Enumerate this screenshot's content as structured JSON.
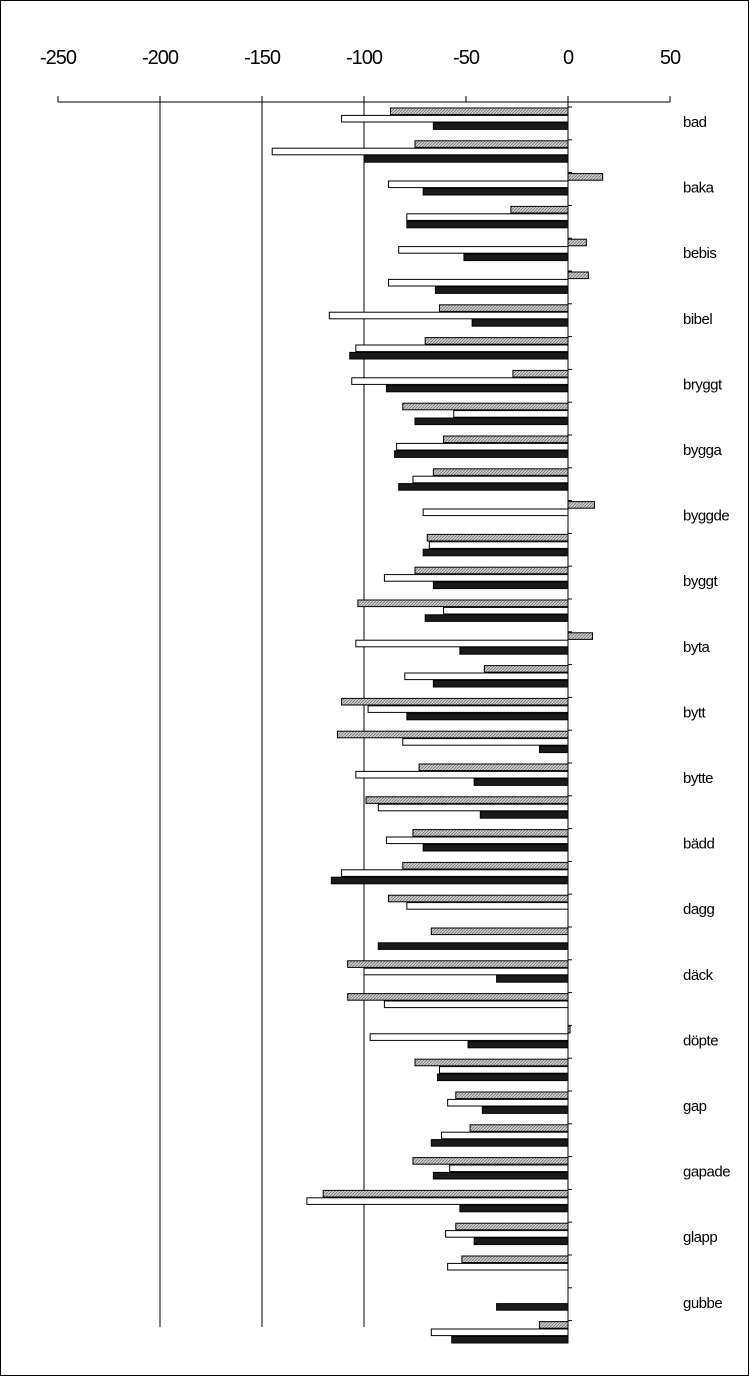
{
  "chart_data": {
    "type": "bar",
    "orientation": "horizontal",
    "title": "",
    "xlabel": "",
    "ylabel": "",
    "xlim": [
      -250,
      50
    ],
    "x_ticks": [
      -250,
      -200,
      -150,
      -100,
      -50,
      0,
      50
    ],
    "x_tick_labels": [
      "-250",
      "-200",
      "-150",
      "-100",
      "-50",
      "0",
      "50"
    ],
    "gridlines": "vertical at -200, -150, -100 (from axis to bottom)",
    "legend": "none",
    "category_labels": [
      "bad",
      "baka",
      "bebis",
      "bibel",
      "bryggt",
      "bygga",
      "byggde",
      "byggt",
      "byta",
      "bytt",
      "bytte",
      "bädd",
      "dagg",
      "däck",
      "döpte",
      "gap",
      "gapade",
      "glapp",
      "gubbe"
    ],
    "series": [
      {
        "fill": "hatched",
        "color": "#a8a8a8"
      },
      {
        "fill": "white",
        "color": "#ffffff"
      },
      {
        "fill": "dark",
        "color": "#1a1a1a"
      }
    ],
    "bar_groups": [
      [
        -87,
        -111,
        -66
      ],
      [
        -75,
        -145,
        -100
      ],
      [
        17,
        -88,
        -71
      ],
      [
        -28,
        -79,
        -79
      ],
      [
        9,
        -83,
        -51
      ],
      [
        10,
        -88,
        -65
      ],
      [
        -63,
        -117,
        -47
      ],
      [
        -70,
        -104,
        -107
      ],
      [
        -27,
        -106,
        -89
      ],
      [
        -81,
        -56,
        -75
      ],
      [
        -61,
        -84,
        -85
      ],
      [
        -66,
        -76,
        -83
      ],
      [
        13,
        -71,
        null
      ],
      [
        -69,
        -68,
        -71
      ],
      [
        -75,
        -90,
        -66
      ],
      [
        -103,
        -61,
        -70
      ],
      [
        12,
        -104,
        -53
      ],
      [
        -41,
        -80,
        -66
      ],
      [
        -111,
        -98,
        -79
      ],
      [
        -113,
        -81,
        -14
      ],
      [
        -73,
        -104,
        -46
      ],
      [
        -99,
        -93,
        -43
      ],
      [
        -76,
        -89,
        -71
      ],
      [
        -81,
        -111,
        -116
      ],
      [
        -88,
        -79,
        null
      ],
      [
        -67,
        null,
        -93
      ],
      [
        -108,
        -100,
        -35
      ],
      [
        -108,
        -90,
        null
      ],
      [
        1,
        -97,
        -49
      ],
      [
        -75,
        -63,
        -64
      ],
      [
        -55,
        -59,
        -42
      ],
      [
        -48,
        -62,
        -67
      ],
      [
        -76,
        -58,
        -66
      ],
      [
        -120,
        -128,
        -53
      ],
      [
        -55,
        -60,
        -46
      ],
      [
        -52,
        -59,
        null
      ],
      [
        null,
        null,
        -35
      ],
      [
        -14,
        -67,
        -57
      ]
    ]
  }
}
